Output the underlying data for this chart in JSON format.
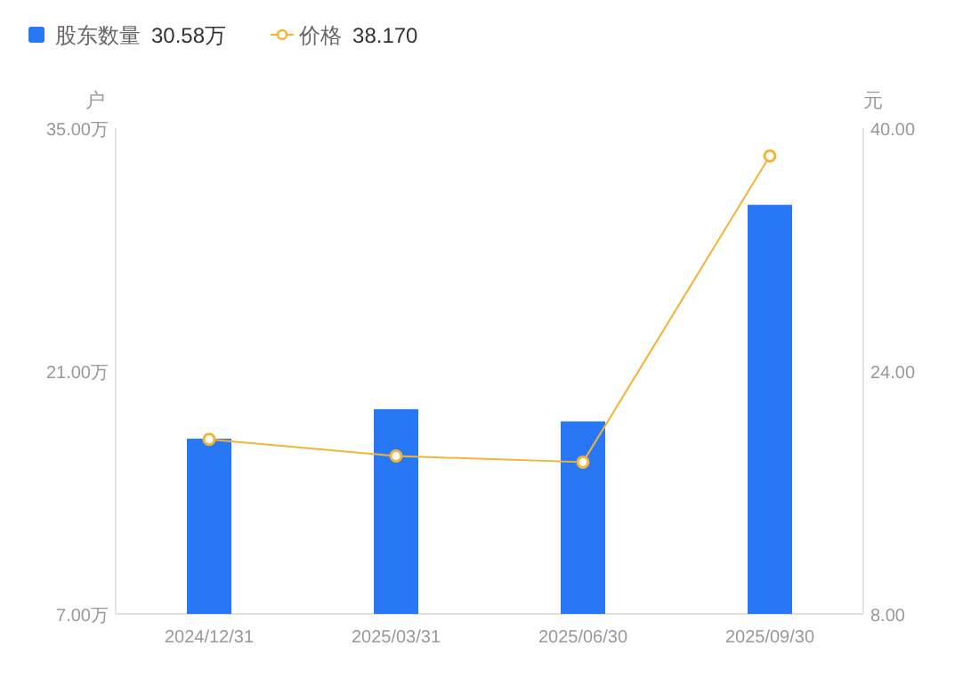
{
  "chart_data": {
    "type": "bar",
    "categories": [
      "2024/12/31",
      "2025/03/31",
      "2025/06/30",
      "2025/09/30"
    ],
    "series": [
      {
        "name": "股东数量",
        "color": "#2878f5",
        "values": [
          17.1,
          18.8,
          18.1,
          30.58
        ]
      },
      {
        "name": "价格",
        "type": "line",
        "axis": "y2",
        "color": "#f5b335",
        "marker": "circle",
        "values": [
          19.5,
          18.4,
          18.0,
          38.17
        ]
      }
    ],
    "ylabel": "户",
    "y2label": "元",
    "annotations": [
      "30.58万",
      "38.170"
    ],
    "ylim": [
      7,
      35
    ],
    "yticks": [
      {
        "value": 7,
        "label": "7.00万"
      },
      {
        "value": 21,
        "label": "21.00万"
      },
      {
        "value": 35,
        "label": "35.00万"
      }
    ],
    "y2lim": [
      8,
      40
    ],
    "y2ticks": [
      {
        "value": 8,
        "label": "8.00"
      },
      {
        "value": 24,
        "label": "24.00"
      },
      {
        "value": 40,
        "label": "40.00"
      }
    ],
    "legend": "top left",
    "grid": false
  }
}
